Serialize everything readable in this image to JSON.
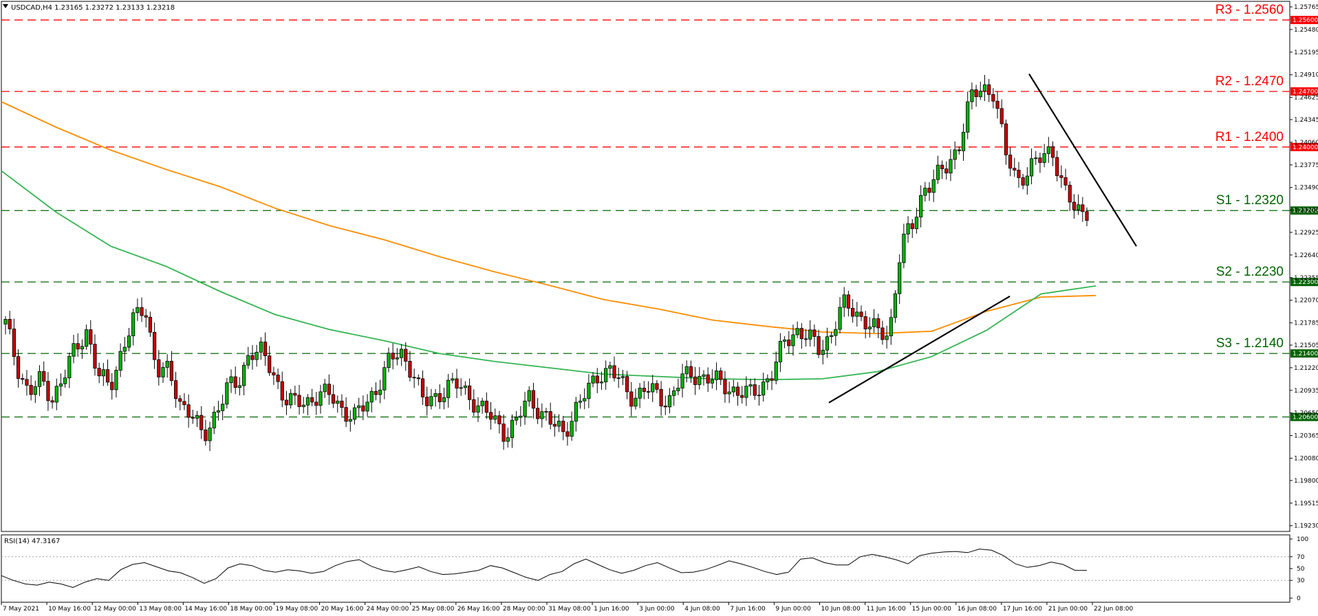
{
  "chart_data": {
    "type": "candlestick",
    "symbol_header": "USDCAD,H4  1.23165 1.23272 1.23133 1.23218",
    "ylim": [
      1.1921,
      1.25765
    ],
    "y_ticks": [
      "1.25765",
      "1.25480",
      "1.25195",
      "1.24910",
      "1.24625",
      "1.24345",
      "1.24060",
      "1.23775",
      "1.23490",
      "1.23205",
      "1.22925",
      "1.22640",
      "1.22355",
      "1.22070",
      "1.21785",
      "1.21505",
      "1.21220",
      "1.20935",
      "1.20650",
      "1.20365",
      "1.20080",
      "1.19800",
      "1.19515",
      "1.19230"
    ],
    "x_labels": [
      "7 May 2021",
      "10 May 16:00",
      "12 May 00:00",
      "13 May 08:00",
      "14 May 16:00",
      "18 May 00:00",
      "19 May 08:00",
      "20 May 16:00",
      "24 May 00:00",
      "25 May 08:00",
      "26 May 16:00",
      "28 May 00:00",
      "31 May 08:00",
      "1 Jun 16:00",
      "3 Jun 00:00",
      "4 Jun 08:00",
      "7 Jun 16:00",
      "9 Jun 00:00",
      "10 Jun 08:00",
      "11 Jun 16:00",
      "15 Jun 00:00",
      "16 Jun 08:00",
      "17 Jun 16:00",
      "21 Jun 00:00",
      "22 Jun 08:00"
    ],
    "levels": [
      {
        "label": "R3 - 1.2560",
        "value": 1.256,
        "tag": "1.25600",
        "color": "#ff0000"
      },
      {
        "label": "R2 - 1.2470",
        "value": 1.247,
        "tag": "1.24700",
        "color": "#ff0000"
      },
      {
        "label": "R1 - 1.2400",
        "value": 1.24,
        "tag": "1.24000",
        "color": "#ff0000"
      },
      {
        "label": "S1 - 1.2320",
        "value": 1.232,
        "tag": "1.23200",
        "color": "#006400"
      },
      {
        "label": "S2 - 1.2230",
        "value": 1.223,
        "tag": "1.22300",
        "color": "#006400"
      },
      {
        "label": "S3 - 1.2140",
        "value": 1.214,
        "tag": "1.21400",
        "color": "#006400"
      },
      {
        "label": "",
        "value": 1.206,
        "tag": "1.20600",
        "color": "#006400"
      }
    ],
    "anchors": [
      1.2177,
      1.2125,
      1.209,
      1.2105,
      1.2085,
      1.211,
      1.2145,
      1.217,
      1.211,
      1.2098,
      1.2145,
      1.218,
      1.22,
      1.212,
      1.2115,
      1.208,
      1.2065,
      1.203,
      1.2065,
      1.2095,
      1.21,
      1.2145,
      1.214,
      1.2115,
      1.2085,
      1.2075,
      1.208,
      1.209,
      1.2085,
      1.207,
      1.206,
      1.2075,
      1.21,
      1.213,
      1.214,
      1.212,
      1.2075,
      1.2085,
      1.21,
      1.2098,
      1.2085,
      1.207,
      1.2055,
      1.204,
      1.2055,
      1.2085,
      1.2068,
      1.205,
      1.204,
      1.207,
      1.209,
      1.2115,
      1.212,
      1.21,
      1.2085,
      1.2095,
      1.2088,
      1.208,
      1.2105,
      1.2115,
      1.211,
      1.2105,
      1.21,
      1.209,
      1.2088,
      1.21,
      1.2115,
      1.2155,
      1.217,
      1.216,
      1.2145,
      1.2165,
      1.22,
      1.2195,
      1.218,
      1.2165,
      1.2165,
      1.2275,
      1.23,
      1.235,
      1.236,
      1.2375,
      1.2405,
      1.246,
      1.2475,
      1.247,
      1.239,
      1.236,
      1.237,
      1.2385,
      1.24,
      1.2345,
      1.232,
      1.2322
    ],
    "ma_slow": {
      "name": "",
      "color": "#ff8c00",
      "values": [
        1.2457,
        1.2425,
        1.2396,
        1.2372,
        1.235,
        1.2323,
        1.2301,
        1.2283,
        1.2262,
        1.2243,
        1.2226,
        1.2208,
        1.2196,
        1.2182,
        1.2174,
        1.2167,
        1.2165,
        1.2168,
        1.2193,
        1.2211,
        1.2213
      ]
    },
    "ma_fast": {
      "name": "",
      "color": "#32b450",
      "values": [
        1.237,
        1.2318,
        1.2275,
        1.225,
        1.2218,
        1.2189,
        1.217,
        1.2156,
        1.214,
        1.213,
        1.2122,
        1.2114,
        1.2111,
        1.2108,
        1.2107,
        1.2108,
        1.2117,
        1.2136,
        1.2169,
        1.2215,
        1.2225
      ]
    },
    "trend_up": [
      [
        1.2078,
        1.2212
      ]
    ],
    "trend_down": [
      [
        1.2492,
        1.2275
      ]
    ],
    "rsi": {
      "label": "RSI(14) 47.3167",
      "y_ticks": [
        "100",
        "70",
        "50",
        "30",
        "0"
      ],
      "ylim": [
        0,
        100
      ],
      "values": [
        38,
        30,
        24,
        22,
        27,
        24,
        18,
        27,
        33,
        30,
        48,
        57,
        60,
        53,
        46,
        43,
        35,
        25,
        33,
        51,
        58,
        55,
        47,
        44,
        48,
        46,
        42,
        45,
        55,
        62,
        65,
        54,
        47,
        44,
        48,
        53,
        45,
        40,
        41,
        44,
        47,
        55,
        51,
        43,
        35,
        30,
        40,
        45,
        58,
        66,
        57,
        48,
        42,
        47,
        55,
        60,
        51,
        43,
        44,
        48,
        55,
        63,
        58,
        52,
        45,
        40,
        44,
        66,
        68,
        60,
        56,
        56,
        70,
        74,
        70,
        65,
        58,
        72,
        76,
        78,
        79,
        77,
        83,
        81,
        72,
        58,
        52,
        55,
        61,
        57,
        47,
        47
      ]
    }
  }
}
